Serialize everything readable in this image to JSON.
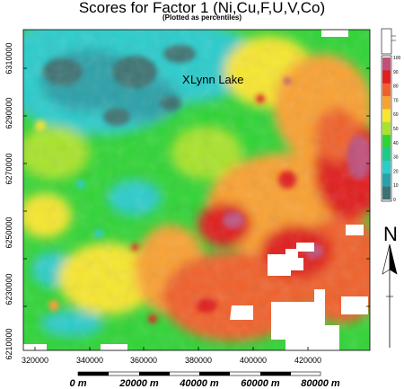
{
  "title": "Scores for Factor 1 (Ni,Cu,F,U,V,Co)",
  "subtitle": "(Plotted as percentiles)",
  "place_label": "Lynn Lake",
  "north_label": "N",
  "y_ticks": [
    "6310000",
    "6290000",
    "6270000",
    "6250000",
    "6230000",
    "6210000"
  ],
  "x_ticks": [
    "320000",
    "340000",
    "360000",
    "380000",
    "400000",
    "420000"
  ],
  "legend": {
    "labels": [
      "100",
      "90",
      "80",
      "70",
      "60",
      "50",
      "40",
      "30",
      "20",
      "10",
      "0"
    ],
    "colors": [
      "#c0507a",
      "#e01f1f",
      "#f0602a",
      "#f9a131",
      "#f7e62d",
      "#a8e32a",
      "#2fd435",
      "#1ec98c",
      "#2ccccc",
      "#2aa0a8",
      "#3d7272"
    ]
  },
  "scale_bar": {
    "labels": [
      "0 m",
      "20000 m",
      "40000 m",
      "60000 m",
      "80000 m"
    ]
  },
  "colors": {
    "low": "#3d7272",
    "mid_low": "#2ccccc",
    "mid": "#2fd435",
    "mid_high": "#f7e62d",
    "high": "#f0602a",
    "very_high": "#e01f1f",
    "extreme": "#c0507a"
  }
}
